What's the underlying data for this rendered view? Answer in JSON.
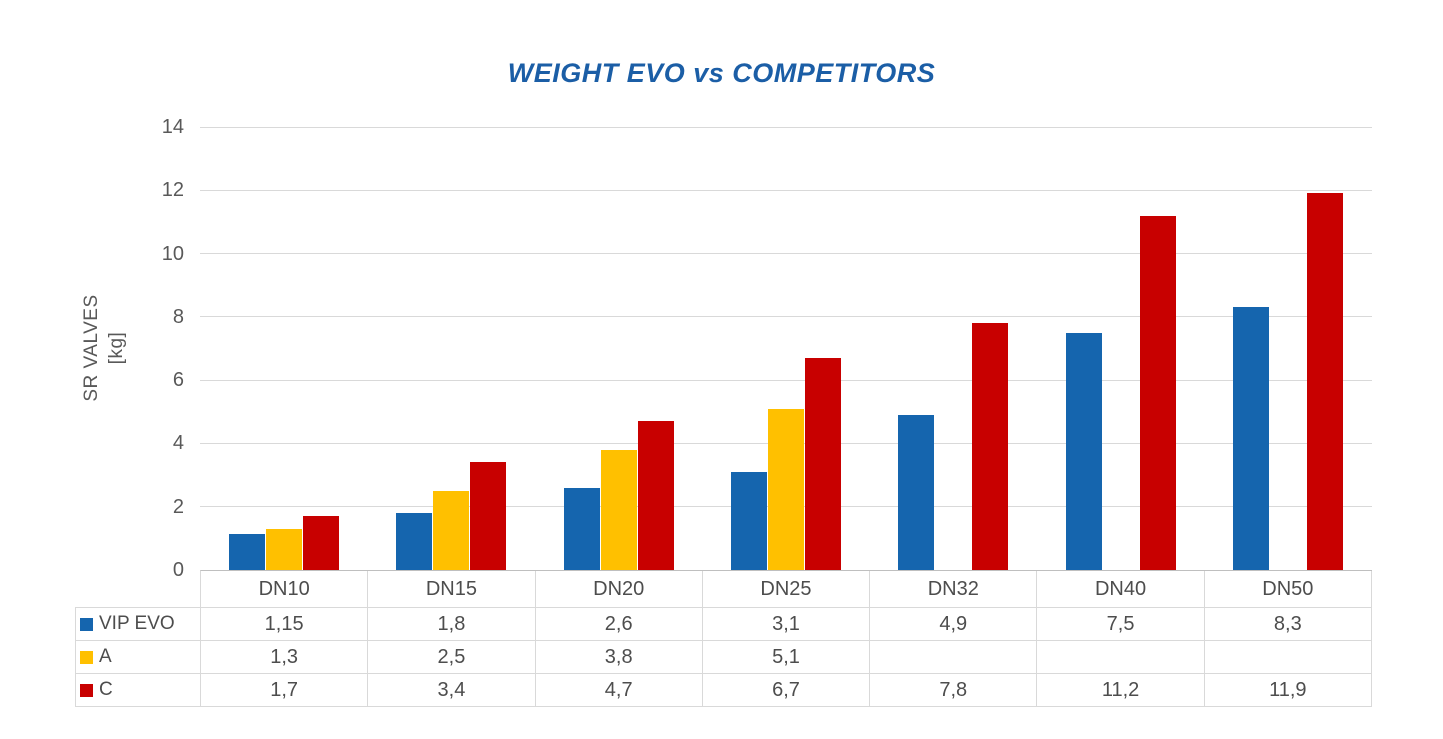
{
  "title": "WEIGHT EVO vs COMPETITORS",
  "y_axis": {
    "line1": "SR VALVES",
    "line2": "[kg]",
    "ticks": [
      14,
      12,
      10,
      8,
      6,
      4,
      2,
      0
    ]
  },
  "colors": {
    "vip_evo_blue": "#1565AE",
    "competitor_a_yellow": "#FFC000",
    "competitor_c_red": "#C80000",
    "title_blue": "#1B5EA6",
    "axis_text_gray": "#595959",
    "grid_gray": "#D9D9D9"
  },
  "chart_data": {
    "type": "bar",
    "title": "WEIGHT EVO vs COMPETITORS",
    "xlabel": "",
    "ylabel": "SR VALVES [kg]",
    "ylim": [
      0,
      14
    ],
    "grid": true,
    "legend_position": "table-left",
    "categories": [
      "DN10",
      "DN15",
      "DN20",
      "DN25",
      "DN32",
      "DN40",
      "DN50"
    ],
    "series": [
      {
        "name": "VIP EVO",
        "color": "#1565AE",
        "values": [
          1.15,
          1.8,
          2.6,
          3.1,
          4.9,
          7.5,
          8.3
        ],
        "display": [
          "1,15",
          "1,8",
          "2,6",
          "3,1",
          "4,9",
          "7,5",
          "8,3"
        ]
      },
      {
        "name": "A",
        "color": "#FFC000",
        "values": [
          1.3,
          2.5,
          3.8,
          5.1,
          null,
          null,
          null
        ],
        "display": [
          "1,3",
          "2,5",
          "3,8",
          "5,1",
          "",
          "",
          ""
        ]
      },
      {
        "name": "C",
        "color": "#C80000",
        "values": [
          1.7,
          3.4,
          4.7,
          6.7,
          7.8,
          11.2,
          11.9
        ],
        "display": [
          "1,7",
          "3,4",
          "4,7",
          "6,7",
          "7,8",
          "11,2",
          "11,9"
        ]
      }
    ]
  }
}
